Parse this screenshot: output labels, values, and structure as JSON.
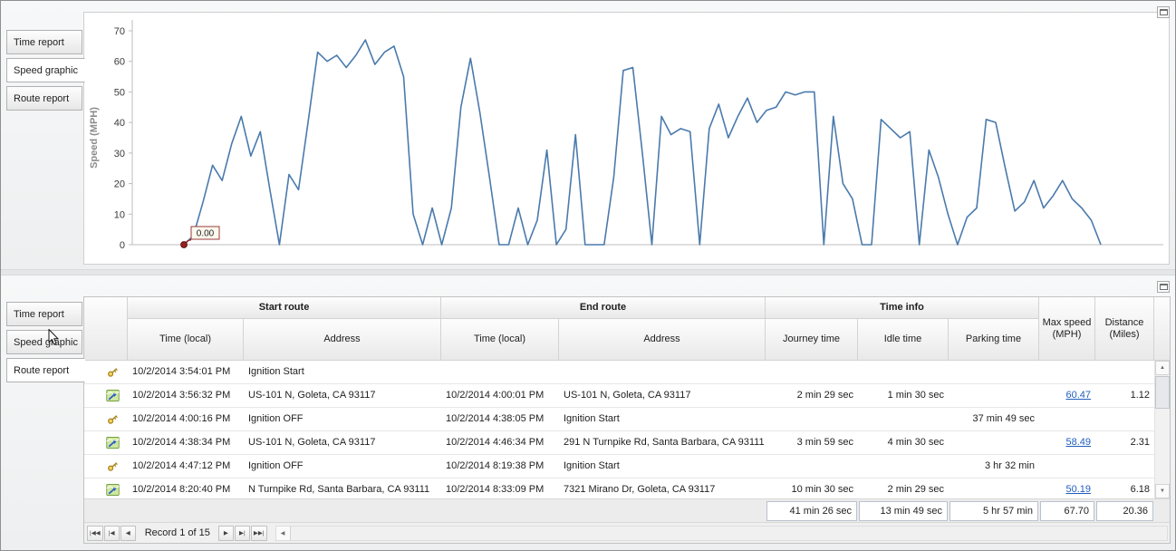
{
  "panels": {
    "top": {
      "active_tab": "Speed graphic",
      "tabs": [
        {
          "label": "Time report"
        },
        {
          "label": "Speed graphic"
        },
        {
          "label": "Route report"
        }
      ]
    },
    "bottom": {
      "active_tab": "Route report",
      "tabs": [
        {
          "label": "Time report"
        },
        {
          "label": "Speed graphic"
        },
        {
          "label": "Route report"
        }
      ]
    }
  },
  "chart_data": {
    "type": "line",
    "title": "",
    "xlabel": "",
    "ylabel": "Speed (MPH)",
    "ylim": [
      0,
      73
    ],
    "yticks": [
      0,
      10,
      20,
      30,
      40,
      50,
      60,
      70
    ],
    "x_tick_labels": [],
    "grid": false,
    "legend": "none",
    "line_color": "#4a7aad",
    "annotation": {
      "text": "0.00",
      "at_value": 0,
      "marker_color": "#9b2020"
    },
    "series": [
      {
        "name": "Speed (MPH)",
        "values": [
          0,
          3,
          14,
          26,
          21,
          33,
          42,
          29,
          37,
          18,
          0,
          23,
          18,
          40,
          63,
          60,
          62,
          58,
          62,
          67,
          59,
          63,
          65,
          55,
          10,
          0,
          12,
          0,
          12,
          45,
          61,
          43,
          22,
          0,
          0,
          12,
          0,
          8,
          31,
          0,
          5,
          36,
          0,
          0,
          0,
          22,
          57,
          58,
          30,
          0,
          42,
          36,
          38,
          37,
          0,
          38,
          46,
          35,
          42,
          48,
          40,
          44,
          45,
          50,
          49,
          50,
          50,
          0,
          42,
          20,
          15,
          0,
          0,
          41,
          38,
          35,
          37,
          0,
          31,
          22,
          10,
          0,
          9,
          12,
          41,
          40,
          25,
          11,
          14,
          21,
          12,
          16,
          21,
          15,
          12,
          8,
          0
        ]
      }
    ]
  },
  "table": {
    "groups": [
      {
        "label": "Start route"
      },
      {
        "label": "End route"
      },
      {
        "label": "Time info"
      }
    ],
    "columns": [
      "Time (local)",
      "Address",
      "Time (local)",
      "Address",
      "Journey time",
      "Idle time",
      "Parking time",
      "Max speed (MPH)",
      "Distance (Miles)"
    ],
    "rows": [
      {
        "icon": "key",
        "cells": [
          "10/2/2014 3:54:01 PM",
          "Ignition Start",
          "",
          "",
          "",
          "",
          "",
          "",
          ""
        ]
      },
      {
        "icon": "route",
        "cells": [
          "10/2/2014 3:56:32 PM",
          "US-101 N, Goleta, CA 93117",
          "10/2/2014 4:00:01 PM",
          "US-101 N, Goleta, CA 93117",
          "2 min 29 sec",
          "1 min 30 sec",
          "",
          "60.47",
          "1.12"
        ]
      },
      {
        "icon": "key",
        "cells": [
          "10/2/2014 4:00:16 PM",
          "Ignition OFF",
          "10/2/2014 4:38:05 PM",
          "Ignition Start",
          "",
          "",
          "37 min 49 sec",
          "",
          ""
        ]
      },
      {
        "icon": "route",
        "cells": [
          "10/2/2014 4:38:34 PM",
          "US-101 N, Goleta, CA 93117",
          "10/2/2014 4:46:34 PM",
          "291 N Turnpike Rd, Santa Barbara, CA 93111",
          "3 min 59 sec",
          "4 min 30 sec",
          "",
          "58.49",
          "2.31"
        ]
      },
      {
        "icon": "key",
        "cells": [
          "10/2/2014 4:47:12 PM",
          "Ignition OFF",
          "10/2/2014 8:19:38 PM",
          "Ignition Start",
          "",
          "",
          "3 hr 32 min",
          "",
          ""
        ]
      },
      {
        "icon": "route",
        "cells": [
          "10/2/2014 8:20:40 PM",
          "N Turnpike Rd, Santa Barbara, CA 93111",
          "10/2/2014 8:33:09 PM",
          "7321 Mirano Dr, Goleta, CA 93117",
          "10 min 30 sec",
          "2 min 29 sec",
          "",
          "50.19",
          "6.18"
        ]
      }
    ],
    "summary": {
      "journey_time": "41 min 26 sec",
      "idle_time": "13 min 49 sec",
      "parking_time": "5 hr 57 min",
      "max_speed": "67.70",
      "distance": "20.36"
    },
    "link_color": "#215ebe"
  },
  "navigator": {
    "record_text": "Record 1 of 15",
    "buttons_left": [
      {
        "name": "first-record-button",
        "glyph": "|◀◀"
      },
      {
        "name": "prev-page-button",
        "glyph": "|◀"
      },
      {
        "name": "prev-record-button",
        "glyph": "◀"
      }
    ],
    "buttons_right": [
      {
        "name": "next-record-button",
        "glyph": "▶"
      },
      {
        "name": "next-page-button",
        "glyph": "▶|"
      },
      {
        "name": "last-record-button",
        "glyph": "▶▶|"
      }
    ]
  },
  "icons": {
    "scroll_up": "▲",
    "scroll_down": "▼",
    "hscroll_left": "◀"
  }
}
